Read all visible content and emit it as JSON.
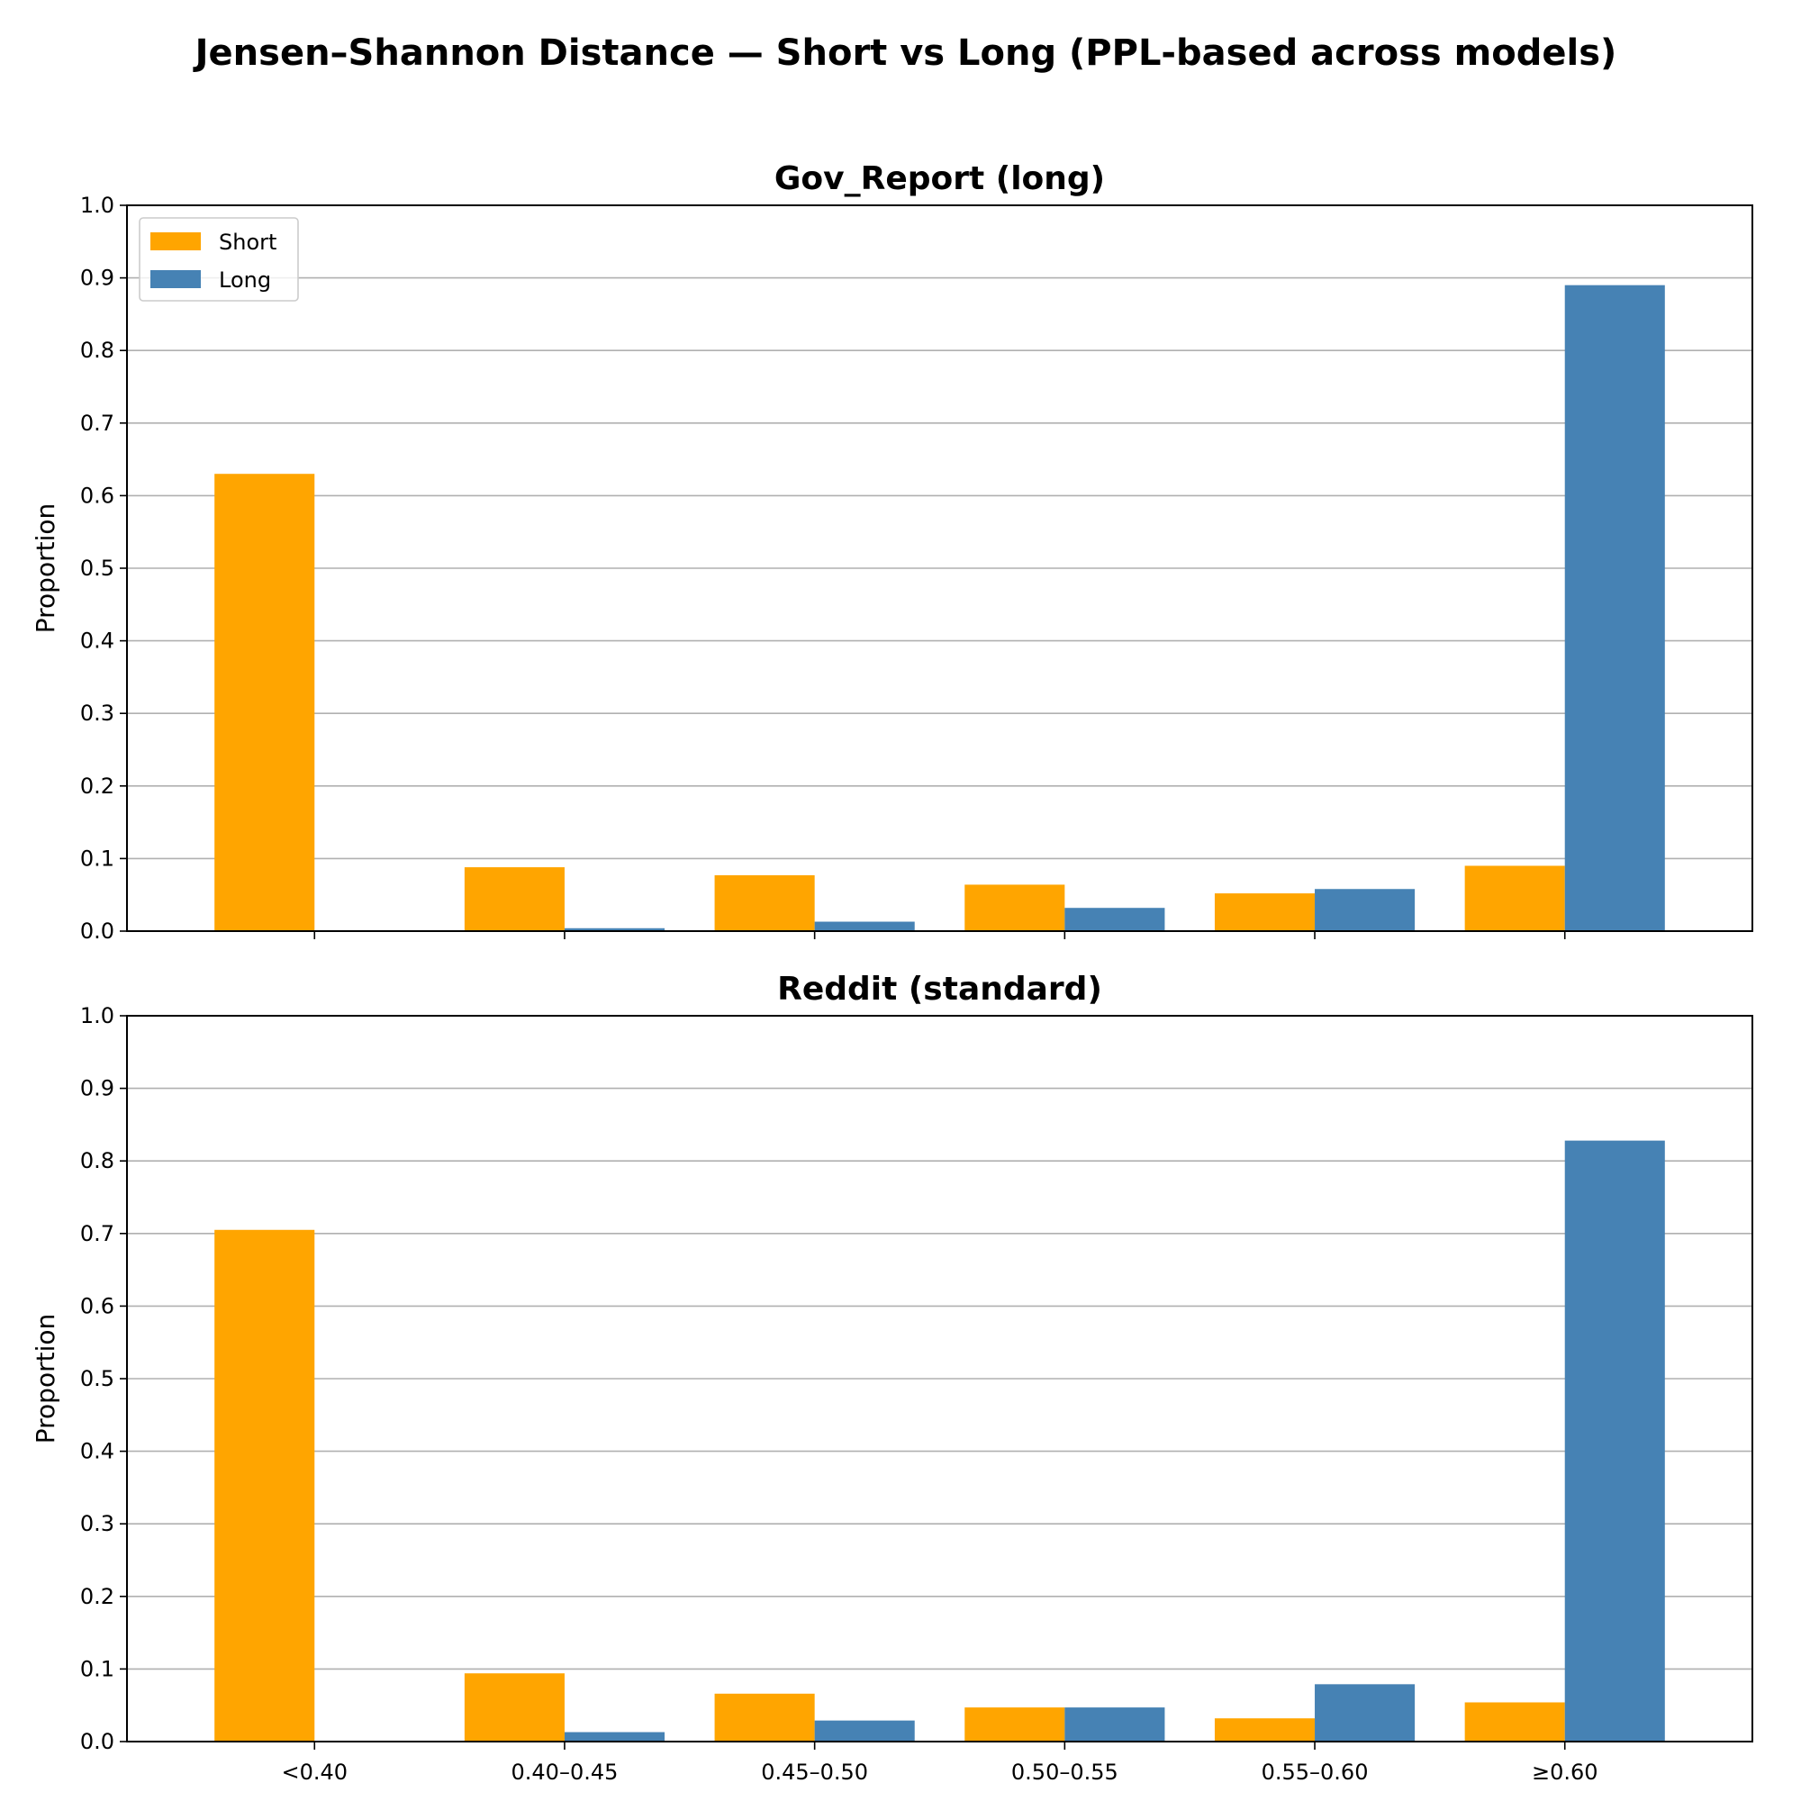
{
  "title": "Jensen–Shannon Distance — Short vs Long (PPL-based across models)",
  "colors": {
    "Short": "#FFA500",
    "Long": "#4682B4",
    "grid": "#b0b0b0"
  },
  "chart_data": [
    {
      "type": "bar",
      "title": "Gov_Report (long)",
      "ylabel": "Proportion",
      "xlabel": "",
      "categories": [
        "<0.40",
        "0.40–0.45",
        "0.45–0.50",
        "0.50–0.55",
        "0.55–0.60",
        "≥0.60"
      ],
      "show_xticklabels": false,
      "ylim": [
        0,
        1.0
      ],
      "yticks": [
        "0.0",
        "0.1",
        "0.2",
        "0.3",
        "0.4",
        "0.5",
        "0.6",
        "0.7",
        "0.8",
        "0.9",
        "1.0"
      ],
      "grid": "y",
      "legend": "top-left",
      "series": [
        {
          "name": "Short",
          "values": [
            0.63,
            0.088,
            0.077,
            0.064,
            0.052,
            0.09
          ]
        },
        {
          "name": "Long",
          "values": [
            0.0,
            0.004,
            0.013,
            0.032,
            0.058,
            0.89
          ]
        }
      ]
    },
    {
      "type": "bar",
      "title": "Reddit (standard)",
      "ylabel": "Proportion",
      "xlabel": "",
      "categories": [
        "<0.40",
        "0.40–0.45",
        "0.45–0.50",
        "0.50–0.55",
        "0.55–0.60",
        "≥0.60"
      ],
      "show_xticklabels": true,
      "ylim": [
        0,
        1.0
      ],
      "yticks": [
        "0.0",
        "0.1",
        "0.2",
        "0.3",
        "0.4",
        "0.5",
        "0.6",
        "0.7",
        "0.8",
        "0.9",
        "1.0"
      ],
      "grid": "y",
      "series": [
        {
          "name": "Short",
          "values": [
            0.705,
            0.094,
            0.066,
            0.047,
            0.032,
            0.054
          ]
        },
        {
          "name": "Long",
          "values": [
            0.001,
            0.013,
            0.029,
            0.047,
            0.079,
            0.828
          ]
        }
      ]
    }
  ]
}
